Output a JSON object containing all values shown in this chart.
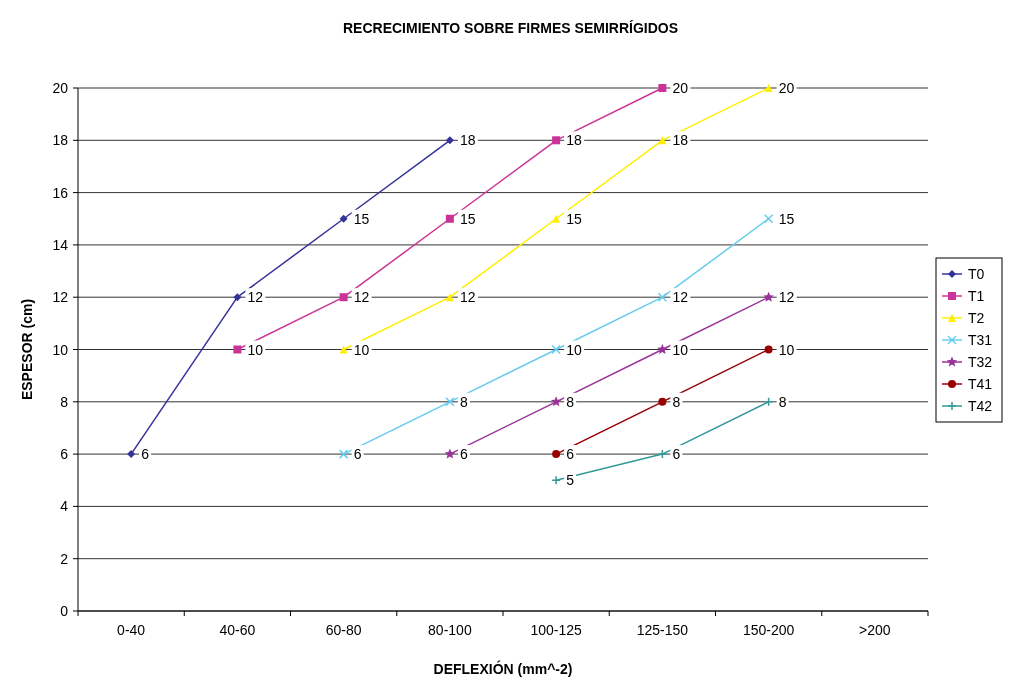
{
  "chart_data": {
    "type": "line",
    "title": "RECRECIMIENTO SOBRE FIRMES SEMIRRÍGIDOS",
    "xlabel": "DEFLEXIÓN (mm^-2)",
    "ylabel": "ESPESOR (cm)",
    "categories": [
      "0-40",
      "40-60",
      "60-80",
      "80-100",
      "100-125",
      "125-150",
      "150-200",
      ">200"
    ],
    "ylim": [
      0,
      20
    ],
    "yticks": [
      0,
      2,
      4,
      6,
      8,
      10,
      12,
      14,
      16,
      18,
      20
    ],
    "grid": "y",
    "legend": "right",
    "data_labels": true,
    "series": [
      {
        "name": "T0",
        "color": "#333399",
        "marker": "diamond",
        "values": [
          6,
          12,
          15,
          18,
          null,
          null,
          null,
          null
        ]
      },
      {
        "name": "T1",
        "color": "#cc3399",
        "marker": "square",
        "values": [
          null,
          10,
          12,
          15,
          18,
          20,
          null,
          null
        ]
      },
      {
        "name": "T2",
        "color": "#ffee00",
        "marker": "triangle",
        "values": [
          null,
          null,
          10,
          12,
          15,
          18,
          20,
          null
        ]
      },
      {
        "name": "T31",
        "color": "#66ccee",
        "marker": "cross",
        "values": [
          null,
          null,
          6,
          8,
          10,
          12,
          15,
          null
        ]
      },
      {
        "name": "T32",
        "color": "#993399",
        "marker": "star",
        "values": [
          null,
          null,
          null,
          6,
          8,
          10,
          12,
          null
        ]
      },
      {
        "name": "T41",
        "color": "#990000",
        "marker": "circle",
        "values": [
          null,
          null,
          null,
          null,
          6,
          8,
          10,
          null
        ]
      },
      {
        "name": "T42",
        "color": "#339999",
        "marker": "plus",
        "values": [
          null,
          null,
          null,
          null,
          5,
          6,
          8,
          null
        ]
      }
    ]
  }
}
